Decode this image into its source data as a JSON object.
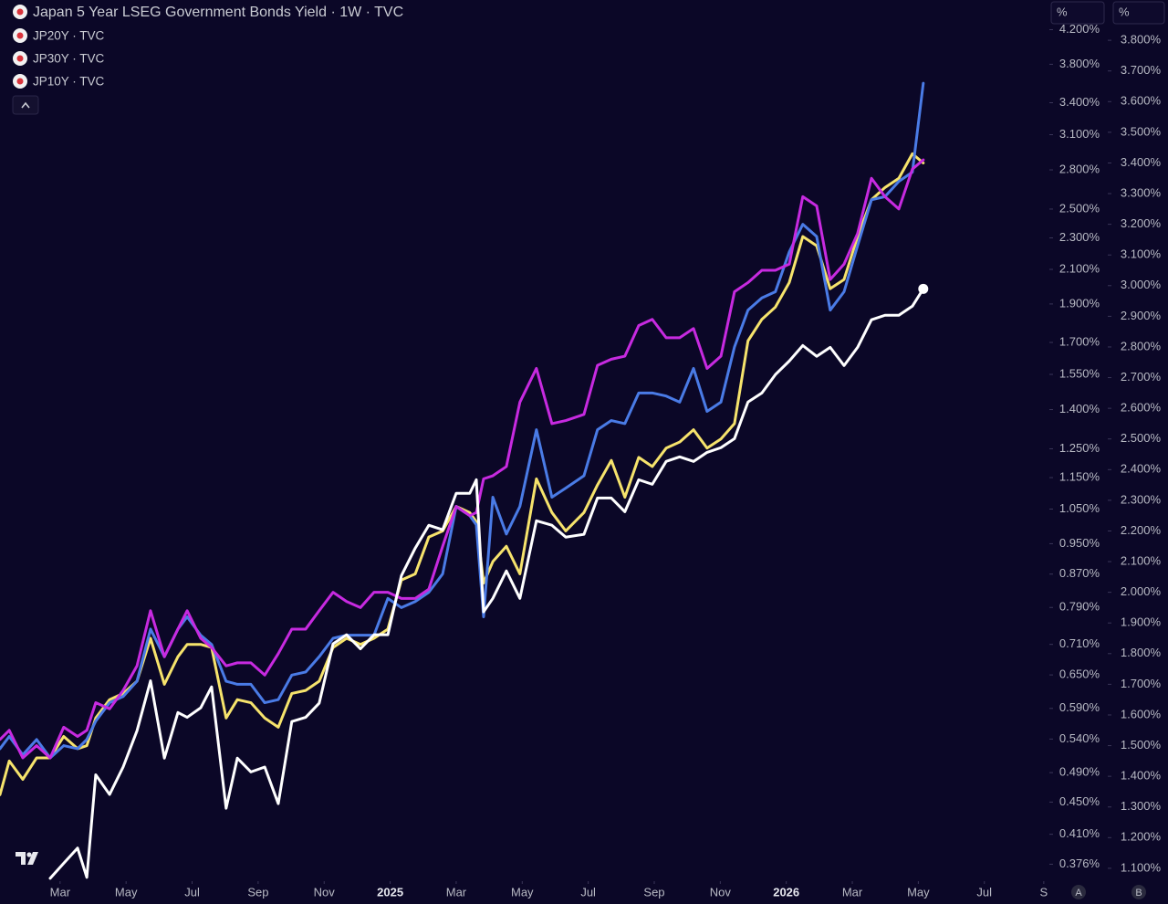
{
  "chart_data": {
    "type": "line",
    "x": [
      0.18,
      0.46,
      0.87,
      1.29,
      1.7,
      2.11,
      2.53,
      2.81,
      3.08,
      3.5,
      3.91,
      4.33,
      4.74,
      5.16,
      5.57,
      5.85,
      6.26,
      6.59,
      7.03,
      7.37,
      7.78,
      8.2,
      8.61,
      9.02,
      9.44,
      9.85,
      10.27,
      10.68,
      11.1,
      11.51,
      11.93,
      12.34,
      12.76,
      13.17,
      13.59,
      14.0,
      14.41,
      14.61,
      14.83,
      15.11,
      15.52,
      15.93,
      16.43,
      16.9,
      17.32,
      17.87,
      18.28,
      18.7,
      19.11,
      19.53,
      19.94,
      20.36,
      20.77,
      21.19,
      21.6,
      22.02,
      22.43,
      22.84,
      23.26,
      23.67,
      24.09,
      24.5,
      24.92,
      25.33,
      25.75,
      26.16,
      26.58,
      26.99,
      27.41,
      27.82,
      28.15
    ],
    "series": [
      {
        "name": "Japan 5 Year LSEG Government Bonds Yield · 1W · TVC",
        "color": "#ffffff",
        "axis": "y",
        "values": [
          null,
          null,
          null,
          null,
          0.361,
          0.377,
          0.394,
          0.362,
          0.487,
          0.46,
          0.498,
          0.553,
          0.639,
          0.511,
          0.583,
          0.575,
          0.591,
          0.628,
          0.442,
          0.511,
          0.491,
          0.498,
          0.448,
          0.568,
          0.575,
          0.599,
          0.711,
          0.73,
          0.701,
          0.73,
          0.73,
          0.866,
          0.938,
          1.002,
          0.989,
          1.099,
          1.099,
          1.143,
          0.78,
          0.811,
          0.878,
          0.811,
          1.015,
          1.002,
          0.968,
          0.976,
          1.084,
          1.084,
          1.042,
          1.143,
          1.128,
          1.205,
          1.221,
          1.205,
          1.237,
          1.254,
          1.287,
          1.431,
          1.469,
          1.549,
          1.611,
          1.685,
          1.633,
          1.676,
          1.59,
          1.676,
          1.815,
          1.839,
          1.839,
          1.888,
          1.985
        ]
      },
      {
        "name": "JP20Y · TVC",
        "color": "#c72ae0",
        "axis": "y2",
        "values": [
          1.52,
          1.55,
          1.46,
          1.5,
          1.46,
          1.56,
          1.53,
          1.55,
          1.64,
          1.62,
          1.68,
          1.76,
          1.94,
          1.79,
          1.88,
          1.94,
          1.85,
          1.82,
          1.76,
          1.77,
          1.77,
          1.73,
          1.8,
          1.88,
          1.88,
          1.94,
          2.0,
          1.97,
          1.95,
          2.0,
          2.0,
          1.98,
          1.98,
          2.01,
          2.15,
          2.28,
          2.25,
          2.26,
          2.37,
          2.38,
          2.41,
          2.62,
          2.73,
          2.55,
          2.56,
          2.58,
          2.74,
          2.76,
          2.77,
          2.87,
          2.89,
          2.83,
          2.83,
          2.86,
          2.73,
          2.77,
          2.98,
          3.01,
          3.05,
          3.05,
          3.07,
          3.29,
          3.26,
          3.02,
          3.07,
          3.17,
          3.35,
          3.29,
          3.25,
          3.38,
          3.41
        ]
      },
      {
        "name": "JP30Y · TVC",
        "color": "#4a7be6",
        "axis": "y2",
        "values": [
          1.49,
          1.53,
          1.47,
          1.52,
          1.46,
          1.5,
          1.49,
          1.52,
          1.58,
          1.64,
          1.66,
          1.71,
          1.88,
          1.79,
          1.88,
          1.92,
          1.86,
          1.83,
          1.71,
          1.7,
          1.7,
          1.64,
          1.65,
          1.73,
          1.74,
          1.79,
          1.85,
          1.86,
          1.86,
          1.86,
          1.98,
          1.95,
          1.97,
          2.0,
          2.06,
          2.28,
          2.25,
          2.22,
          1.92,
          2.31,
          2.19,
          2.28,
          2.53,
          2.31,
          2.34,
          2.38,
          2.53,
          2.56,
          2.55,
          2.65,
          2.65,
          2.64,
          2.62,
          2.73,
          2.59,
          2.62,
          2.8,
          2.92,
          2.96,
          2.98,
          3.11,
          3.2,
          3.16,
          2.92,
          2.98,
          3.13,
          3.28,
          3.29,
          3.34,
          3.37,
          3.66
        ]
      },
      {
        "name": "JP10Y · TVC",
        "color": "#f6e36c",
        "axis": "y2",
        "values": [
          1.34,
          1.45,
          1.39,
          1.46,
          1.46,
          1.53,
          1.49,
          1.5,
          1.59,
          1.65,
          1.67,
          1.71,
          1.85,
          1.7,
          1.79,
          1.83,
          1.83,
          1.82,
          1.59,
          1.65,
          1.64,
          1.59,
          1.56,
          1.67,
          1.68,
          1.71,
          1.82,
          1.85,
          1.83,
          1.85,
          1.88,
          2.04,
          2.06,
          2.18,
          2.2,
          2.28,
          2.26,
          2.23,
          2.03,
          2.1,
          2.15,
          2.06,
          2.37,
          2.26,
          2.2,
          2.26,
          2.35,
          2.43,
          2.31,
          2.44,
          2.41,
          2.47,
          2.49,
          2.53,
          2.47,
          2.5,
          2.55,
          2.82,
          2.89,
          2.93,
          3.01,
          3.16,
          3.13,
          2.99,
          3.02,
          3.16,
          3.28,
          3.32,
          3.35,
          3.43,
          3.4
        ]
      }
    ],
    "xlim": [
      0.18,
      31.97
    ],
    "xticks": [
      {
        "value": 2,
        "label": "Mar"
      },
      {
        "value": 4,
        "label": "May"
      },
      {
        "value": 6,
        "label": "Jul"
      },
      {
        "value": 8,
        "label": "Sep"
      },
      {
        "value": 10,
        "label": "Nov"
      },
      {
        "value": 12,
        "label": "2025"
      },
      {
        "value": 14,
        "label": "Mar"
      },
      {
        "value": 16,
        "label": "May"
      },
      {
        "value": 18,
        "label": "Jul"
      },
      {
        "value": 20,
        "label": "Sep"
      },
      {
        "value": 22,
        "label": "Nov"
      },
      {
        "value": 24,
        "label": "2026"
      },
      {
        "value": 26,
        "label": "Mar"
      },
      {
        "value": 28,
        "label": "May"
      },
      {
        "value": 30,
        "label": "Jul"
      },
      {
        "value": 31.8,
        "label": "S"
      }
    ],
    "ylog": true,
    "ylim": [
      0.358,
      4.25
    ],
    "yticks": [
      {
        "value": 4.2,
        "label": "4.200%"
      },
      {
        "value": 3.8,
        "label": "3.800%"
      },
      {
        "value": 3.4,
        "label": "3.400%"
      },
      {
        "value": 3.1,
        "label": "3.100%"
      },
      {
        "value": 2.8,
        "label": "2.800%"
      },
      {
        "value": 2.5,
        "label": "2.500%"
      },
      {
        "value": 2.3,
        "label": "2.300%"
      },
      {
        "value": 2.1,
        "label": "2.100%"
      },
      {
        "value": 1.9,
        "label": "1.900%"
      },
      {
        "value": 1.7,
        "label": "1.700%"
      },
      {
        "value": 1.55,
        "label": "1.550%"
      },
      {
        "value": 1.4,
        "label": "1.400%"
      },
      {
        "value": 1.25,
        "label": "1.250%"
      },
      {
        "value": 1.15,
        "label": "1.150%"
      },
      {
        "value": 1.05,
        "label": "1.050%"
      },
      {
        "value": 0.95,
        "label": "0.950%"
      },
      {
        "value": 0.87,
        "label": "0.870%"
      },
      {
        "value": 0.79,
        "label": "0.790%"
      },
      {
        "value": 0.71,
        "label": "0.710%"
      },
      {
        "value": 0.65,
        "label": "0.650%"
      },
      {
        "value": 0.59,
        "label": "0.590%"
      },
      {
        "value": 0.54,
        "label": "0.540%"
      },
      {
        "value": 0.49,
        "label": "0.490%"
      },
      {
        "value": 0.45,
        "label": "0.450%"
      },
      {
        "value": 0.41,
        "label": "0.410%"
      },
      {
        "value": 0.376,
        "label": "0.376%"
      }
    ],
    "y2lim": [
      1.058,
      3.848
    ],
    "y2ticks": [
      {
        "value": 3.8,
        "label": "3.800%"
      },
      {
        "value": 3.7,
        "label": "3.700%"
      },
      {
        "value": 3.6,
        "label": "3.600%"
      },
      {
        "value": 3.5,
        "label": "3.500%"
      },
      {
        "value": 3.4,
        "label": "3.400%"
      },
      {
        "value": 3.3,
        "label": "3.300%"
      },
      {
        "value": 3.2,
        "label": "3.200%"
      },
      {
        "value": 3.1,
        "label": "3.100%"
      },
      {
        "value": 3.0,
        "label": "3.000%"
      },
      {
        "value": 2.9,
        "label": "2.900%"
      },
      {
        "value": 2.8,
        "label": "2.800%"
      },
      {
        "value": 2.7,
        "label": "2.700%"
      },
      {
        "value": 2.6,
        "label": "2.600%"
      },
      {
        "value": 2.5,
        "label": "2.500%"
      },
      {
        "value": 2.4,
        "label": "2.400%"
      },
      {
        "value": 2.3,
        "label": "2.300%"
      },
      {
        "value": 2.2,
        "label": "2.200%"
      },
      {
        "value": 2.1,
        "label": "2.100%"
      },
      {
        "value": 2.0,
        "label": "2.000%"
      },
      {
        "value": 1.9,
        "label": "1.900%"
      },
      {
        "value": 1.8,
        "label": "1.800%"
      },
      {
        "value": 1.7,
        "label": "1.700%"
      },
      {
        "value": 1.6,
        "label": "1.600%"
      },
      {
        "value": 1.5,
        "label": "1.500%"
      },
      {
        "value": 1.4,
        "label": "1.400%"
      },
      {
        "value": 1.3,
        "label": "1.300%"
      },
      {
        "value": 1.2,
        "label": "1.200%"
      },
      {
        "value": 1.1,
        "label": "1.100%"
      }
    ],
    "grid": false
  },
  "ui": {
    "scale_units": [
      "%",
      "%"
    ],
    "buttons": [
      "A",
      "B"
    ]
  }
}
